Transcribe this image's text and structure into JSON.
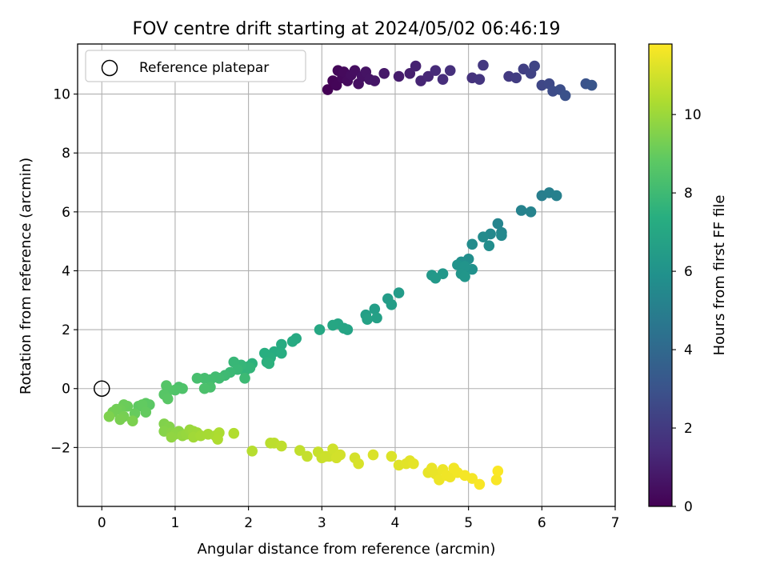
{
  "chart_data": {
    "type": "scatter",
    "title": "FOV centre drift starting at 2024/05/02 06:46:19",
    "xlabel": "Angular distance from reference (arcmin)",
    "ylabel": "Rotation from reference (arcmin)",
    "xlim": [
      -0.33,
      7.0
    ],
    "ylim": [
      -4.0,
      11.7
    ],
    "xticks": [
      0,
      1,
      2,
      3,
      4,
      5,
      6,
      7
    ],
    "yticks": [
      -2,
      0,
      2,
      4,
      6,
      8,
      10
    ],
    "ytick_labels": [
      "−2",
      "0",
      "2",
      "4",
      "6",
      "8",
      "10"
    ],
    "grid": true,
    "legend": {
      "position": "top-left",
      "entries": [
        "Reference platepar"
      ]
    },
    "reference_point": {
      "x": 0,
      "y": 0,
      "marker": "open-circle"
    },
    "colorbar": {
      "label": "Hours from first FF file",
      "colormap": "viridis",
      "range": [
        0,
        11.8
      ],
      "ticks": [
        0,
        2,
        4,
        6,
        8,
        10
      ]
    },
    "points": [
      [
        3.08,
        10.15,
        0.05
      ],
      [
        3.15,
        10.45,
        0.1
      ],
      [
        3.2,
        10.3,
        0.15
      ],
      [
        3.22,
        10.8,
        0.2
      ],
      [
        3.28,
        10.55,
        0.25
      ],
      [
        3.3,
        10.75,
        0.3
      ],
      [
        3.35,
        10.45,
        0.35
      ],
      [
        3.4,
        10.65,
        0.4
      ],
      [
        3.45,
        10.8,
        0.45
      ],
      [
        3.5,
        10.35,
        0.5
      ],
      [
        3.55,
        10.6,
        0.55
      ],
      [
        3.6,
        10.75,
        0.6
      ],
      [
        3.65,
        10.5,
        0.65
      ],
      [
        3.72,
        10.45,
        0.7
      ],
      [
        3.85,
        10.7,
        0.8
      ],
      [
        4.05,
        10.6,
        0.9
      ],
      [
        4.2,
        10.7,
        1.0
      ],
      [
        4.28,
        10.95,
        1.1
      ],
      [
        4.35,
        10.45,
        1.2
      ],
      [
        4.45,
        10.6,
        1.3
      ],
      [
        4.55,
        10.8,
        1.4
      ],
      [
        4.65,
        10.5,
        1.5
      ],
      [
        4.75,
        10.8,
        1.6
      ],
      [
        5.05,
        10.55,
        1.7
      ],
      [
        5.15,
        10.5,
        1.8
      ],
      [
        5.2,
        10.98,
        1.9
      ],
      [
        5.55,
        10.6,
        2.0
      ],
      [
        5.65,
        10.55,
        2.1
      ],
      [
        5.75,
        10.85,
        2.2
      ],
      [
        5.85,
        10.7,
        2.3
      ],
      [
        5.9,
        10.95,
        2.4
      ],
      [
        6.0,
        10.3,
        2.5
      ],
      [
        6.1,
        10.35,
        2.6
      ],
      [
        6.15,
        10.1,
        2.7
      ],
      [
        6.25,
        10.15,
        2.8
      ],
      [
        6.32,
        9.95,
        2.9
      ],
      [
        6.6,
        10.35,
        3.0
      ],
      [
        6.68,
        10.3,
        3.1
      ],
      [
        6.0,
        6.55,
        5.0
      ],
      [
        6.1,
        6.65,
        5.05
      ],
      [
        6.2,
        6.55,
        5.1
      ],
      [
        5.72,
        6.05,
        5.2
      ],
      [
        5.85,
        6.0,
        5.25
      ],
      [
        5.4,
        5.6,
        5.3
      ],
      [
        5.45,
        5.3,
        5.4
      ],
      [
        5.3,
        5.25,
        5.45
      ],
      [
        5.45,
        5.2,
        5.5
      ],
      [
        5.2,
        5.15,
        5.6
      ],
      [
        5.05,
        4.9,
        5.65
      ],
      [
        5.28,
        4.85,
        5.7
      ],
      [
        5.0,
        4.4,
        5.75
      ],
      [
        4.9,
        4.3,
        5.8
      ],
      [
        5.05,
        4.05,
        5.9
      ],
      [
        4.95,
        4.0,
        5.95
      ],
      [
        4.85,
        4.2,
        6.0
      ],
      [
        4.95,
        4.15,
        6.05
      ],
      [
        4.9,
        3.9,
        6.1
      ],
      [
        4.95,
        3.8,
        6.15
      ],
      [
        4.65,
        3.9,
        6.2
      ],
      [
        4.5,
        3.85,
        6.25
      ],
      [
        4.55,
        3.75,
        6.3
      ],
      [
        4.05,
        3.25,
        6.4
      ],
      [
        3.9,
        3.05,
        6.45
      ],
      [
        3.95,
        2.85,
        6.5
      ],
      [
        3.72,
        2.7,
        6.55
      ],
      [
        3.6,
        2.5,
        6.6
      ],
      [
        3.75,
        2.4,
        6.65
      ],
      [
        3.62,
        2.35,
        6.7
      ],
      [
        3.35,
        2.0,
        6.8
      ],
      [
        3.3,
        2.05,
        6.85
      ],
      [
        3.22,
        2.2,
        6.9
      ],
      [
        3.15,
        2.15,
        6.95
      ],
      [
        2.97,
        2.0,
        7.0
      ],
      [
        2.65,
        1.7,
        7.1
      ],
      [
        2.6,
        1.6,
        7.15
      ],
      [
        2.45,
        1.5,
        7.2
      ],
      [
        2.35,
        1.25,
        7.25
      ],
      [
        2.45,
        1.2,
        7.3
      ],
      [
        2.22,
        1.2,
        7.35
      ],
      [
        2.3,
        1.05,
        7.4
      ],
      [
        2.25,
        0.9,
        7.45
      ],
      [
        2.28,
        0.85,
        7.5
      ],
      [
        2.05,
        0.85,
        7.55
      ],
      [
        2.0,
        0.75,
        7.6
      ],
      [
        1.95,
        0.6,
        7.65
      ],
      [
        2.02,
        0.7,
        7.7
      ],
      [
        1.9,
        0.8,
        7.75
      ],
      [
        1.8,
        0.9,
        7.8
      ],
      [
        1.85,
        0.65,
        7.85
      ],
      [
        1.75,
        0.55,
        7.9
      ],
      [
        1.95,
        0.35,
        7.95
      ],
      [
        1.68,
        0.45,
        8.0
      ],
      [
        1.6,
        0.35,
        8.05
      ],
      [
        1.55,
        0.4,
        8.1
      ],
      [
        1.48,
        0.3,
        8.15
      ],
      [
        1.4,
        0.35,
        8.2
      ],
      [
        1.3,
        0.35,
        8.25
      ],
      [
        1.48,
        0.05,
        8.3
      ],
      [
        1.4,
        0.0,
        8.35
      ],
      [
        1.05,
        0.05,
        8.4
      ],
      [
        1.1,
        0.0,
        8.45
      ],
      [
        1.0,
        -0.05,
        8.5
      ],
      [
        0.92,
        -0.05,
        8.55
      ],
      [
        0.88,
        0.1,
        8.6
      ],
      [
        0.85,
        -0.2,
        8.65
      ],
      [
        0.9,
        -0.35,
        8.7
      ],
      [
        0.65,
        -0.55,
        8.75
      ],
      [
        0.6,
        -0.5,
        8.8
      ],
      [
        0.5,
        -0.6,
        8.85
      ],
      [
        0.55,
        -0.55,
        8.9
      ],
      [
        0.6,
        -0.8,
        8.95
      ],
      [
        0.45,
        -0.85,
        9.0
      ],
      [
        0.35,
        -0.6,
        9.05
      ],
      [
        0.3,
        -0.55,
        9.1
      ],
      [
        0.25,
        -0.7,
        9.15
      ],
      [
        0.2,
        -0.7,
        9.2
      ],
      [
        0.15,
        -0.8,
        9.25
      ],
      [
        0.3,
        -0.95,
        9.3
      ],
      [
        0.25,
        -1.05,
        9.35
      ],
      [
        0.42,
        -1.1,
        9.4
      ],
      [
        0.1,
        -0.95,
        9.45
      ],
      [
        0.85,
        -1.2,
        9.5
      ],
      [
        0.92,
        -1.3,
        9.55
      ],
      [
        0.85,
        -1.45,
        9.6
      ],
      [
        0.95,
        -1.5,
        9.65
      ],
      [
        1.05,
        -1.45,
        9.7
      ],
      [
        1.0,
        -1.55,
        9.75
      ],
      [
        0.95,
        -1.65,
        9.8
      ],
      [
        1.1,
        -1.6,
        9.85
      ],
      [
        1.15,
        -1.55,
        9.9
      ],
      [
        1.2,
        -1.4,
        9.95
      ],
      [
        1.25,
        -1.45,
        10.0
      ],
      [
        1.3,
        -1.5,
        10.05
      ],
      [
        1.25,
        -1.65,
        10.1
      ],
      [
        1.35,
        -1.6,
        10.15
      ],
      [
        1.45,
        -1.55,
        10.2
      ],
      [
        1.55,
        -1.6,
        10.25
      ],
      [
        1.6,
        -1.5,
        10.3
      ],
      [
        1.58,
        -1.72,
        10.35
      ],
      [
        1.8,
        -1.52,
        10.4
      ],
      [
        2.05,
        -2.12,
        10.5
      ],
      [
        2.3,
        -1.85,
        10.55
      ],
      [
        2.35,
        -1.85,
        10.6
      ],
      [
        2.45,
        -1.95,
        10.65
      ],
      [
        2.7,
        -2.1,
        10.7
      ],
      [
        2.8,
        -2.3,
        10.75
      ],
      [
        2.95,
        -2.15,
        10.8
      ],
      [
        3.0,
        -2.35,
        10.85
      ],
      [
        3.05,
        -2.3,
        10.9
      ],
      [
        3.1,
        -2.3,
        10.9
      ],
      [
        3.15,
        -2.05,
        10.95
      ],
      [
        3.2,
        -2.35,
        11.0
      ],
      [
        3.25,
        -2.25,
        11.0
      ],
      [
        3.45,
        -2.35,
        11.05
      ],
      [
        3.5,
        -2.55,
        11.1
      ],
      [
        3.7,
        -2.25,
        11.15
      ],
      [
        3.95,
        -2.3,
        11.2
      ],
      [
        4.05,
        -2.6,
        11.25
      ],
      [
        4.15,
        -2.55,
        11.3
      ],
      [
        4.2,
        -2.45,
        11.3
      ],
      [
        4.25,
        -2.55,
        11.35
      ],
      [
        4.45,
        -2.85,
        11.4
      ],
      [
        4.5,
        -2.7,
        11.45
      ],
      [
        4.55,
        -2.9,
        11.45
      ],
      [
        4.6,
        -3.1,
        11.5
      ],
      [
        4.65,
        -2.75,
        11.5
      ],
      [
        4.7,
        -2.95,
        11.55
      ],
      [
        4.75,
        -3.0,
        11.55
      ],
      [
        4.8,
        -2.7,
        11.6
      ],
      [
        4.85,
        -2.85,
        11.6
      ],
      [
        4.95,
        -2.95,
        11.65
      ],
      [
        5.05,
        -3.05,
        11.65
      ],
      [
        5.15,
        -3.25,
        11.7
      ],
      [
        5.38,
        -3.1,
        11.7
      ],
      [
        5.4,
        -2.8,
        11.75
      ]
    ]
  }
}
